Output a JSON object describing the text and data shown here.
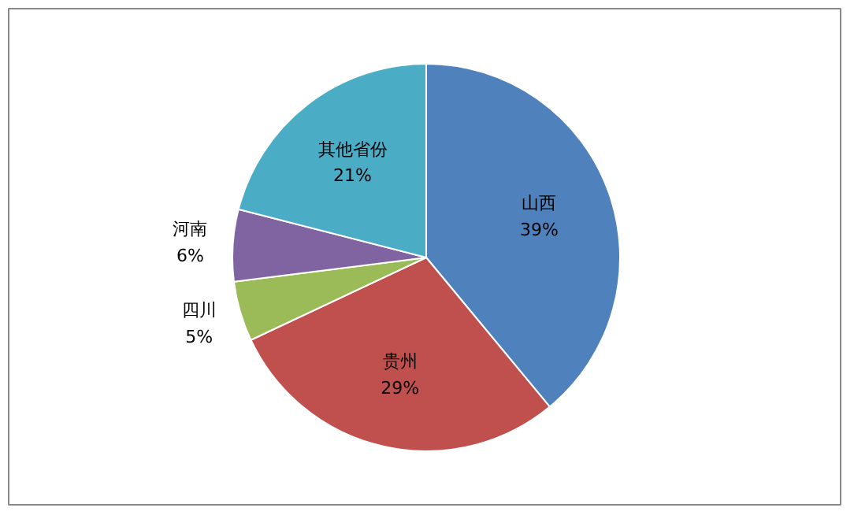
{
  "chart_data": {
    "type": "pie",
    "categories": [
      "山西",
      "贵州",
      "四川",
      "河南",
      "其他省份"
    ],
    "values": [
      39,
      29,
      5,
      6,
      21
    ],
    "colors": [
      "#4f81bd",
      "#c0504d",
      "#9bbb59",
      "#8064a2",
      "#4bacc6"
    ],
    "value_labels": [
      "39%",
      "29%",
      "5%",
      "6%",
      "21%"
    ]
  }
}
